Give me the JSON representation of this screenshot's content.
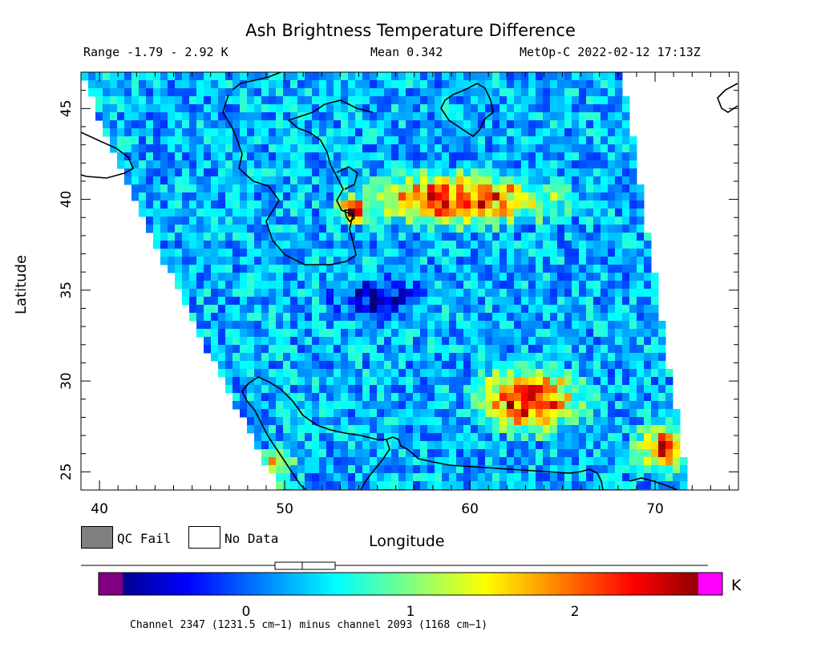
{
  "header": {
    "title": "Ash Brightness Temperature Difference",
    "range_text": "Range -1.79 - 2.92 K",
    "mean_text": "Mean 0.342",
    "sat_text": "MetOp-C 2022-02-12 17:13Z"
  },
  "legend": {
    "qc_fail_label": "QC Fail",
    "no_data_label": "No Data",
    "qc_fail_color": "#808080",
    "no_data_color": "#ffffff"
  },
  "colorbar": {
    "unit": "K",
    "tick_labels": [
      "0",
      "1",
      "2"
    ],
    "tick_values": [
      0,
      1,
      2
    ],
    "vmin": -0.75,
    "vmax": 2.75,
    "under_color": "#800080",
    "over_color": "#ff00ff",
    "footnote": "Channel 2347 (1231.5 cm−1) minus channel 2093 (1168 cm−1)"
  },
  "chart_data": {
    "type": "heatmap",
    "title": "Ash Brightness Temperature Difference",
    "xlabel": "Longitude",
    "ylabel": "Latitude",
    "xlim": [
      39,
      74.5
    ],
    "ylim": [
      24,
      47
    ],
    "x_ticks": [
      40,
      50,
      60,
      70
    ],
    "y_ticks": [
      25,
      30,
      35,
      40,
      45
    ],
    "x_tick_labels": [
      "40",
      "50",
      "60",
      "70"
    ],
    "y_tick_labels": [
      "25",
      "30",
      "35",
      "40",
      "45"
    ],
    "value_range": [
      -1.79,
      2.92
    ],
    "mean": 0.342,
    "units": "K",
    "background_value": 0.3,
    "hotspots": [
      {
        "lon": 59.5,
        "lat": 40.0,
        "peak": 2.3,
        "rx": 4.5,
        "ry": 1.2
      },
      {
        "lon": 53.7,
        "lat": 39.3,
        "peak": 2.4,
        "rx": 0.7,
        "ry": 0.6
      },
      {
        "lon": 63.2,
        "lat": 29.0,
        "peak": 2.4,
        "rx": 2.5,
        "ry": 1.5
      },
      {
        "lon": 70.5,
        "lat": 26.3,
        "peak": 2.0,
        "rx": 1.4,
        "ry": 1.2
      },
      {
        "lon": 49.5,
        "lat": 25.3,
        "peak": 1.6,
        "rx": 0.8,
        "ry": 0.8
      },
      {
        "lon": 55.0,
        "lat": 34.5,
        "peak": -0.6,
        "rx": 2.0,
        "ry": 1.0
      }
    ]
  }
}
